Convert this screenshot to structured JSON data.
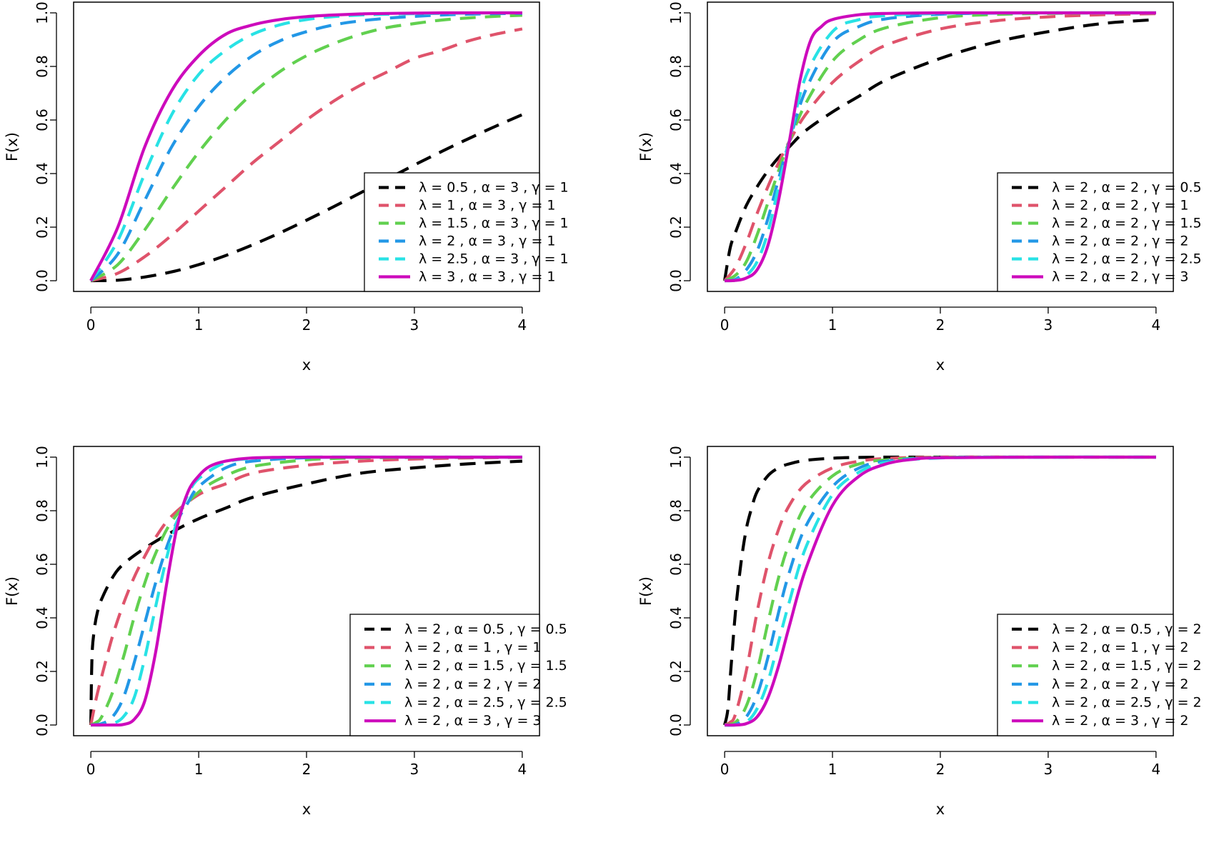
{
  "colors": {
    "black": "#000000",
    "red": "#DF536B",
    "green": "#61D04F",
    "blue": "#2297E6",
    "cyan": "#28E2E5",
    "magenta": "#CD0BBC"
  },
  "chart_data": [
    {
      "type": "line",
      "title": "",
      "xlabel": "x",
      "ylabel": "F(x)",
      "xlim": [
        0,
        4
      ],
      "ylim": [
        0,
        1
      ],
      "xticks": [
        "0",
        "1",
        "2",
        "3",
        "4"
      ],
      "yticks": [
        "0.0",
        "0.2",
        "0.4",
        "0.6",
        "0.8",
        "1.0"
      ],
      "grid": false,
      "legend_position": "bottom-right",
      "series": [
        {
          "name": "λ = 0.5 , α = 3 , γ = 1",
          "color": "black",
          "style": "dashed",
          "x": [
            0,
            0.25,
            0.5,
            0.75,
            1,
            1.25,
            1.5,
            1.75,
            2,
            2.25,
            2.5,
            2.75,
            3,
            3.25,
            3.5,
            3.75,
            4
          ],
          "y": [
            0,
            0.002,
            0.014,
            0.033,
            0.06,
            0.094,
            0.134,
            0.178,
            0.226,
            0.276,
            0.328,
            0.38,
            0.432,
            0.482,
            0.53,
            0.576,
            0.62
          ]
        },
        {
          "name": "λ = 1 , α = 3 , γ = 1",
          "color": "red",
          "style": "dashed",
          "x": [
            0,
            0.25,
            0.5,
            0.75,
            1,
            1.25,
            1.5,
            1.75,
            2,
            2.25,
            2.5,
            2.75,
            3,
            3.25,
            3.5,
            3.75,
            4
          ],
          "y": [
            0,
            0.028,
            0.09,
            0.17,
            0.26,
            0.35,
            0.44,
            0.52,
            0.6,
            0.67,
            0.73,
            0.78,
            0.83,
            0.86,
            0.895,
            0.92,
            0.94
          ]
        },
        {
          "name": "λ = 1.5 , α = 3 , γ = 1",
          "color": "green",
          "style": "dashed",
          "x": [
            0,
            0.25,
            0.5,
            0.75,
            1,
            1.25,
            1.5,
            1.75,
            2,
            2.25,
            2.5,
            2.75,
            3,
            3.25,
            3.5,
            3.75,
            4
          ],
          "y": [
            0,
            0.06,
            0.19,
            0.34,
            0.48,
            0.6,
            0.7,
            0.78,
            0.84,
            0.885,
            0.92,
            0.945,
            0.96,
            0.973,
            0.981,
            0.987,
            0.991
          ]
        },
        {
          "name": "λ = 2 , α = 3 , γ = 1",
          "color": "blue",
          "style": "dashed",
          "x": [
            0,
            0.25,
            0.5,
            0.75,
            1,
            1.25,
            1.5,
            1.75,
            2,
            2.25,
            2.5,
            2.75,
            3,
            3.25,
            3.5,
            3.75,
            4
          ],
          "y": [
            0,
            0.1,
            0.3,
            0.5,
            0.65,
            0.76,
            0.84,
            0.895,
            0.93,
            0.955,
            0.97,
            0.98,
            0.987,
            0.992,
            0.995,
            0.997,
            0.998
          ]
        },
        {
          "name": "λ = 2.5 , α = 3 , γ = 1",
          "color": "cyan",
          "style": "dashed",
          "x": [
            0,
            0.25,
            0.5,
            0.75,
            1,
            1.25,
            1.5,
            1.75,
            2,
            2.25,
            2.5,
            2.75,
            3,
            3.25,
            3.5,
            3.75,
            4
          ],
          "y": [
            0,
            0.15,
            0.4,
            0.62,
            0.77,
            0.86,
            0.92,
            0.955,
            0.975,
            0.986,
            0.992,
            0.995,
            0.997,
            0.998,
            0.999,
            1,
            1
          ]
        },
        {
          "name": "λ = 3 , α = 3 , γ = 1",
          "color": "magenta",
          "style": "solid",
          "x": [
            0,
            0.25,
            0.5,
            0.75,
            1,
            1.25,
            1.5,
            1.75,
            2,
            2.25,
            2.5,
            2.75,
            3,
            3.25,
            3.5,
            3.75,
            4
          ],
          "y": [
            0,
            0.2,
            0.5,
            0.71,
            0.84,
            0.92,
            0.955,
            0.975,
            0.986,
            0.992,
            0.996,
            0.998,
            0.999,
            1,
            1,
            1,
            1
          ]
        }
      ]
    },
    {
      "type": "line",
      "title": "",
      "xlabel": "x",
      "ylabel": "F(x)",
      "xlim": [
        0,
        4
      ],
      "ylim": [
        0,
        1
      ],
      "xticks": [
        "0",
        "1",
        "2",
        "3",
        "4"
      ],
      "yticks": [
        "0.0",
        "0.2",
        "0.4",
        "0.6",
        "0.8",
        "1.0"
      ],
      "grid": false,
      "legend_position": "bottom-right",
      "series": [
        {
          "name": "λ = 2 , α = 2 , γ = 0.5",
          "color": "black",
          "style": "dashed",
          "x": [
            0,
            0.05,
            0.1,
            0.2,
            0.3,
            0.4,
            0.5,
            0.6,
            0.75,
            1,
            1.25,
            1.5,
            2,
            2.5,
            3,
            3.5,
            4
          ],
          "y": [
            0,
            0.12,
            0.18,
            0.28,
            0.35,
            0.41,
            0.46,
            0.5,
            0.56,
            0.63,
            0.69,
            0.75,
            0.83,
            0.89,
            0.93,
            0.96,
            0.975
          ]
        },
        {
          "name": "λ = 2 , α = 2 , γ = 1",
          "color": "red",
          "style": "dashed",
          "x": [
            0,
            0.1,
            0.2,
            0.3,
            0.4,
            0.5,
            0.6,
            0.75,
            1,
            1.25,
            1.5,
            2,
            2.5,
            3,
            3.5,
            4
          ],
          "y": [
            0,
            0.05,
            0.14,
            0.25,
            0.35,
            0.44,
            0.52,
            0.62,
            0.74,
            0.82,
            0.88,
            0.94,
            0.97,
            0.985,
            0.993,
            0.997
          ]
        },
        {
          "name": "λ = 2 , α = 2 , γ = 1.5",
          "color": "green",
          "style": "dashed",
          "x": [
            0,
            0.1,
            0.2,
            0.3,
            0.4,
            0.5,
            0.6,
            0.75,
            1,
            1.25,
            1.5,
            2,
            2.5,
            3,
            3.5,
            4
          ],
          "y": [
            0,
            0.02,
            0.07,
            0.17,
            0.29,
            0.41,
            0.52,
            0.66,
            0.82,
            0.9,
            0.945,
            0.982,
            0.994,
            0.998,
            1,
            1
          ]
        },
        {
          "name": "λ = 2 , α = 2 , γ = 2",
          "color": "blue",
          "style": "dashed",
          "x": [
            0,
            0.1,
            0.2,
            0.3,
            0.4,
            0.5,
            0.6,
            0.75,
            1,
            1.25,
            1.5,
            2,
            2.5,
            3,
            3.5,
            4
          ],
          "y": [
            0,
            0.005,
            0.04,
            0.11,
            0.23,
            0.38,
            0.52,
            0.71,
            0.89,
            0.95,
            0.978,
            0.995,
            0.999,
            1,
            1,
            1
          ]
        },
        {
          "name": "λ = 2 , α = 2 , γ = 2.5",
          "color": "cyan",
          "style": "dashed",
          "x": [
            0,
            0.1,
            0.2,
            0.3,
            0.4,
            0.5,
            0.6,
            0.75,
            1,
            1.25,
            1.5,
            2,
            2.5,
            3,
            3.5,
            4
          ],
          "y": [
            0,
            0.002,
            0.02,
            0.07,
            0.18,
            0.35,
            0.52,
            0.76,
            0.93,
            0.975,
            0.99,
            0.998,
            1,
            1,
            1,
            1
          ]
        },
        {
          "name": "λ = 2 , α = 2 , γ = 3",
          "color": "magenta",
          "style": "solid",
          "x": [
            0,
            0.1,
            0.2,
            0.3,
            0.4,
            0.5,
            0.6,
            0.7,
            0.8,
            0.9,
            1,
            1.25,
            1.5,
            2,
            2.5,
            3,
            3.5,
            4
          ],
          "y": [
            0,
            0.001,
            0.01,
            0.04,
            0.13,
            0.3,
            0.52,
            0.75,
            0.9,
            0.95,
            0.975,
            0.993,
            0.998,
            1,
            1,
            1,
            1,
            1
          ]
        }
      ]
    },
    {
      "type": "line",
      "title": "",
      "xlabel": "x",
      "ylabel": "F(x)",
      "xlim": [
        0,
        4
      ],
      "ylim": [
        0,
        1
      ],
      "xticks": [
        "0",
        "1",
        "2",
        "3",
        "4"
      ],
      "yticks": [
        "0.0",
        "0.2",
        "0.4",
        "0.6",
        "0.8",
        "1.0"
      ],
      "grid": false,
      "legend_position": "bottom-right",
      "series": [
        {
          "name": "λ = 2 , α = 0.5 , γ = 0.5",
          "color": "black",
          "style": "dashed",
          "x": [
            0,
            0.01,
            0.03,
            0.06,
            0.1,
            0.2,
            0.3,
            0.5,
            0.75,
            1,
            1.25,
            1.5,
            2,
            2.5,
            3,
            3.5,
            4
          ],
          "y": [
            0,
            0.25,
            0.35,
            0.42,
            0.47,
            0.55,
            0.6,
            0.66,
            0.72,
            0.77,
            0.81,
            0.85,
            0.9,
            0.94,
            0.96,
            0.975,
            0.985
          ]
        },
        {
          "name": "λ = 2 , α = 1 , γ = 1",
          "color": "red",
          "style": "dashed",
          "x": [
            0,
            0.05,
            0.1,
            0.2,
            0.3,
            0.4,
            0.5,
            0.6,
            0.75,
            1,
            1.25,
            1.5,
            2,
            2.5,
            3,
            3.5,
            4
          ],
          "y": [
            0,
            0.1,
            0.18,
            0.33,
            0.45,
            0.55,
            0.63,
            0.7,
            0.78,
            0.86,
            0.9,
            0.94,
            0.97,
            0.985,
            0.993,
            0.997,
            0.999
          ]
        },
        {
          "name": "λ = 2 , α = 1.5 , γ = 1.5",
          "color": "green",
          "style": "dashed",
          "x": [
            0,
            0.05,
            0.1,
            0.2,
            0.3,
            0.4,
            0.5,
            0.6,
            0.75,
            1,
            1.25,
            1.5,
            2,
            2.5,
            3,
            4
          ],
          "y": [
            0,
            0.01,
            0.03,
            0.12,
            0.25,
            0.4,
            0.53,
            0.64,
            0.76,
            0.87,
            0.93,
            0.965,
            0.99,
            0.997,
            0.999,
            1
          ]
        },
        {
          "name": "λ = 2 , α = 2 , γ = 2",
          "color": "blue",
          "style": "dashed",
          "x": [
            0,
            0.1,
            0.2,
            0.3,
            0.4,
            0.5,
            0.6,
            0.7,
            0.8,
            0.9,
            1,
            1.25,
            1.5,
            2,
            2.5,
            3,
            4
          ],
          "y": [
            0,
            0.005,
            0.03,
            0.1,
            0.23,
            0.38,
            0.53,
            0.66,
            0.76,
            0.83,
            0.89,
            0.96,
            0.985,
            0.998,
            1,
            1,
            1
          ]
        },
        {
          "name": "λ = 2 , α = 2.5 , γ = 2.5",
          "color": "cyan",
          "style": "dashed",
          "x": [
            0,
            0.1,
            0.2,
            0.3,
            0.4,
            0.5,
            0.6,
            0.7,
            0.8,
            0.9,
            1,
            1.25,
            1.5,
            2,
            3,
            4
          ],
          "y": [
            0,
            0,
            0.005,
            0.03,
            0.1,
            0.25,
            0.44,
            0.62,
            0.76,
            0.86,
            0.92,
            0.98,
            0.995,
            1,
            1,
            1
          ]
        },
        {
          "name": "λ = 2 , α = 3 , γ = 3",
          "color": "magenta",
          "style": "solid",
          "x": [
            0,
            0.2,
            0.3,
            0.4,
            0.5,
            0.6,
            0.7,
            0.8,
            0.9,
            1,
            1.1,
            1.25,
            1.5,
            2,
            3,
            4
          ],
          "y": [
            0,
            0,
            0.002,
            0.02,
            0.09,
            0.27,
            0.52,
            0.74,
            0.87,
            0.93,
            0.965,
            0.985,
            0.997,
            1,
            1,
            1
          ]
        }
      ]
    },
    {
      "type": "line",
      "title": "",
      "xlabel": "x",
      "ylabel": "F(x)",
      "xlim": [
        0,
        4
      ],
      "ylim": [
        0,
        1
      ],
      "xticks": [
        "0",
        "1",
        "2",
        "3",
        "4"
      ],
      "yticks": [
        "0.0",
        "0.2",
        "0.4",
        "0.6",
        "0.8",
        "1.0"
      ],
      "grid": false,
      "legend_position": "bottom-right",
      "series": [
        {
          "name": "λ = 2 , α = 0.5 , γ = 2",
          "color": "black",
          "style": "dashed",
          "x": [
            0,
            0.03,
            0.06,
            0.1,
            0.15,
            0.2,
            0.25,
            0.3,
            0.4,
            0.5,
            0.6,
            0.75,
            1,
            1.25,
            1.5,
            2,
            3,
            4
          ],
          "y": [
            0,
            0.06,
            0.22,
            0.42,
            0.6,
            0.73,
            0.81,
            0.87,
            0.93,
            0.96,
            0.975,
            0.988,
            0.996,
            0.999,
            1,
            1,
            1,
            1
          ]
        },
        {
          "name": "λ = 2 , α = 1 , γ = 2",
          "color": "red",
          "style": "dashed",
          "x": [
            0,
            0.05,
            0.1,
            0.2,
            0.3,
            0.4,
            0.5,
            0.6,
            0.75,
            1,
            1.25,
            1.5,
            2,
            3,
            4
          ],
          "y": [
            0,
            0.01,
            0.04,
            0.2,
            0.42,
            0.6,
            0.73,
            0.82,
            0.9,
            0.96,
            0.985,
            0.995,
            1,
            1,
            1
          ]
        },
        {
          "name": "λ = 2 , α = 1.5 , γ = 2",
          "color": "green",
          "style": "dashed",
          "x": [
            0,
            0.1,
            0.2,
            0.3,
            0.4,
            0.5,
            0.6,
            0.75,
            1,
            1.25,
            1.5,
            2,
            3,
            4
          ],
          "y": [
            0,
            0.01,
            0.07,
            0.2,
            0.38,
            0.55,
            0.68,
            0.82,
            0.93,
            0.975,
            0.99,
            0.999,
            1,
            1
          ]
        },
        {
          "name": "λ = 2 , α = 2 , γ = 2",
          "color": "blue",
          "style": "dashed",
          "x": [
            0,
            0.1,
            0.2,
            0.3,
            0.4,
            0.5,
            0.6,
            0.75,
            1,
            1.25,
            1.5,
            2,
            3,
            4
          ],
          "y": [
            0,
            0.002,
            0.03,
            0.11,
            0.25,
            0.42,
            0.57,
            0.74,
            0.89,
            0.96,
            0.985,
            0.998,
            1,
            1
          ]
        },
        {
          "name": "λ = 2 , α = 2.5 , γ = 2",
          "color": "cyan",
          "style": "dashed",
          "x": [
            0,
            0.1,
            0.2,
            0.3,
            0.4,
            0.5,
            0.6,
            0.75,
            1,
            1.25,
            1.5,
            2,
            3,
            4
          ],
          "y": [
            0,
            0,
            0.01,
            0.06,
            0.16,
            0.31,
            0.46,
            0.66,
            0.86,
            0.945,
            0.98,
            0.997,
            1,
            1
          ]
        },
        {
          "name": "λ = 2 , α = 3 , γ = 2",
          "color": "magenta",
          "style": "solid",
          "x": [
            0,
            0.1,
            0.2,
            0.3,
            0.4,
            0.5,
            0.6,
            0.75,
            1,
            1.25,
            1.5,
            1.75,
            2,
            3,
            4
          ],
          "y": [
            0,
            0,
            0.005,
            0.03,
            0.1,
            0.22,
            0.37,
            0.58,
            0.82,
            0.93,
            0.975,
            0.992,
            0.998,
            1,
            1
          ]
        }
      ]
    }
  ]
}
